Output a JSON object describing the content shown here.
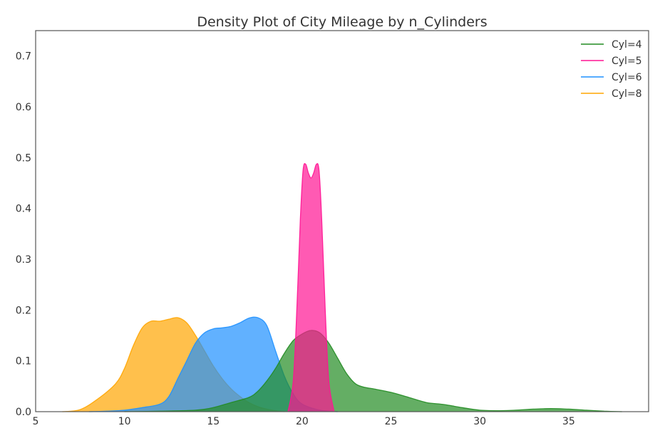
{
  "chart_data": {
    "type": "area",
    "title": "Density Plot of City Mileage by n_Cylinders",
    "xlabel": "",
    "ylabel": "",
    "xlim": [
      5,
      39.5
    ],
    "ylim": [
      0,
      0.75
    ],
    "xticks": [
      5,
      10,
      15,
      20,
      25,
      30,
      35
    ],
    "xtick_labels": [
      "5",
      "10",
      "15",
      "20",
      "25",
      "30",
      "35"
    ],
    "yticks": [
      0.0,
      0.1,
      0.2,
      0.3,
      0.4,
      0.5,
      0.6,
      0.7
    ],
    "ytick_labels": [
      "0.0",
      "0.1",
      "0.2",
      "0.3",
      "0.4",
      "0.5",
      "0.6",
      "0.7"
    ],
    "grid": false,
    "legend_position": "top-right",
    "series": [
      {
        "name": "Cyl=8",
        "color": "#ffa500",
        "points": [
          [
            6.5,
            0
          ],
          [
            7.5,
            0.004
          ],
          [
            8.5,
            0.025
          ],
          [
            9.5,
            0.055
          ],
          [
            10,
            0.085
          ],
          [
            10.5,
            0.13
          ],
          [
            11,
            0.165
          ],
          [
            11.5,
            0.178
          ],
          [
            12,
            0.178
          ],
          [
            12.5,
            0.182
          ],
          [
            13,
            0.185
          ],
          [
            13.5,
            0.175
          ],
          [
            14,
            0.15
          ],
          [
            14.5,
            0.12
          ],
          [
            15,
            0.09
          ],
          [
            15.5,
            0.065
          ],
          [
            16,
            0.045
          ],
          [
            16.5,
            0.03
          ],
          [
            17,
            0.018
          ],
          [
            17.5,
            0.01
          ],
          [
            18,
            0.005
          ],
          [
            18.5,
            0.002
          ],
          [
            19,
            0
          ]
        ]
      },
      {
        "name": "Cyl=6",
        "color": "#1e90ff",
        "points": [
          [
            8,
            0
          ],
          [
            9,
            0.001
          ],
          [
            10,
            0.003
          ],
          [
            11,
            0.008
          ],
          [
            12,
            0.015
          ],
          [
            12.5,
            0.03
          ],
          [
            13,
            0.065
          ],
          [
            13.5,
            0.1
          ],
          [
            14,
            0.135
          ],
          [
            14.5,
            0.155
          ],
          [
            15,
            0.163
          ],
          [
            15.5,
            0.165
          ],
          [
            16,
            0.168
          ],
          [
            16.5,
            0.175
          ],
          [
            17,
            0.184
          ],
          [
            17.5,
            0.185
          ],
          [
            18,
            0.17
          ],
          [
            18.5,
            0.12
          ],
          [
            19,
            0.07
          ],
          [
            19.5,
            0.035
          ],
          [
            20,
            0.015
          ],
          [
            21,
            0.003
          ],
          [
            22,
            0
          ]
        ]
      },
      {
        "name": "Cyl=4",
        "color": "#228b22",
        "points": [
          [
            10,
            0
          ],
          [
            12,
            0.001
          ],
          [
            14,
            0.003
          ],
          [
            15,
            0.008
          ],
          [
            16,
            0.018
          ],
          [
            17,
            0.028
          ],
          [
            17.5,
            0.04
          ],
          [
            18,
            0.06
          ],
          [
            18.5,
            0.085
          ],
          [
            19,
            0.115
          ],
          [
            19.5,
            0.14
          ],
          [
            20,
            0.153
          ],
          [
            20.5,
            0.16
          ],
          [
            21,
            0.155
          ],
          [
            21.5,
            0.135
          ],
          [
            22,
            0.105
          ],
          [
            22.5,
            0.075
          ],
          [
            23,
            0.055
          ],
          [
            23.5,
            0.048
          ],
          [
            24,
            0.045
          ],
          [
            25,
            0.038
          ],
          [
            26,
            0.028
          ],
          [
            27,
            0.018
          ],
          [
            28,
            0.014
          ],
          [
            29,
            0.008
          ],
          [
            30,
            0.003
          ],
          [
            31,
            0.002
          ],
          [
            32,
            0.003
          ],
          [
            33,
            0.005
          ],
          [
            34,
            0.006
          ],
          [
            35,
            0.005
          ],
          [
            36,
            0.003
          ],
          [
            37,
            0.001
          ],
          [
            38,
            0
          ]
        ]
      },
      {
        "name": "Cyl=5",
        "color": "#ff1493",
        "points": [
          [
            19.2,
            0
          ],
          [
            19.5,
            0.06
          ],
          [
            19.7,
            0.2
          ],
          [
            19.9,
            0.38
          ],
          [
            20.05,
            0.475
          ],
          [
            20.2,
            0.487
          ],
          [
            20.35,
            0.47
          ],
          [
            20.5,
            0.46
          ],
          [
            20.65,
            0.47
          ],
          [
            20.8,
            0.487
          ],
          [
            20.95,
            0.475
          ],
          [
            21.1,
            0.38
          ],
          [
            21.3,
            0.2
          ],
          [
            21.5,
            0.06
          ],
          [
            21.8,
            0
          ]
        ]
      }
    ]
  }
}
